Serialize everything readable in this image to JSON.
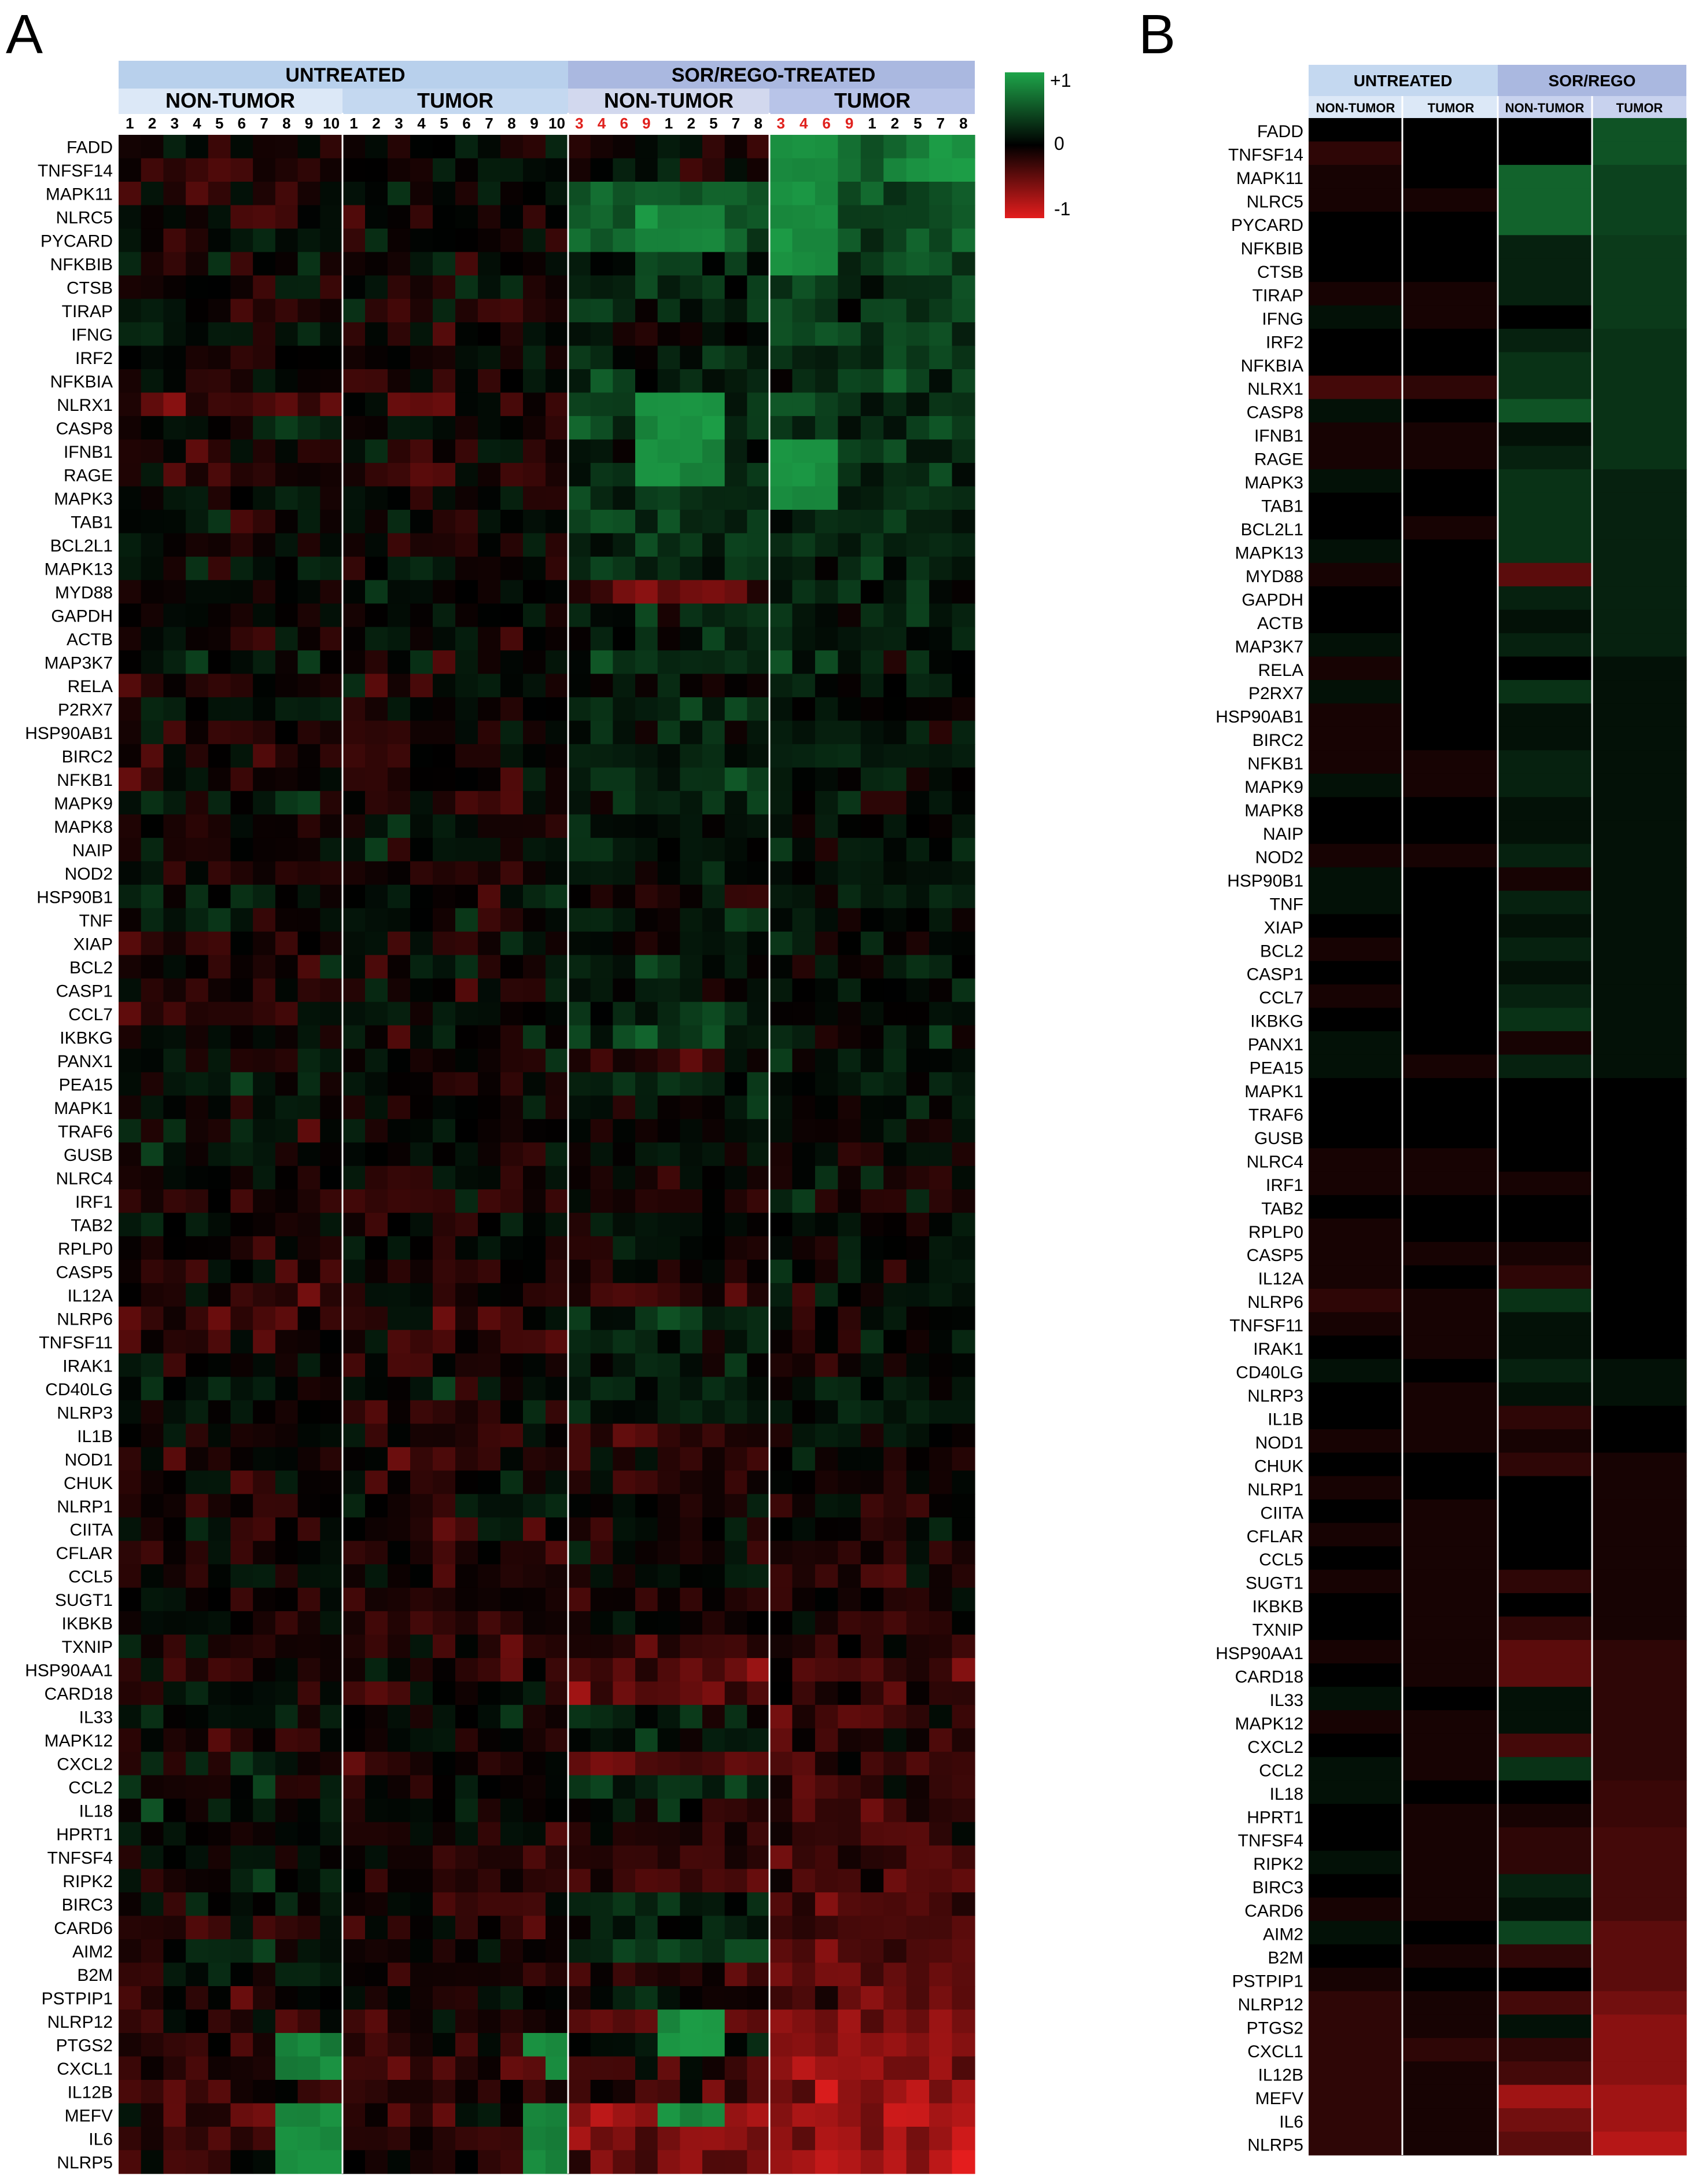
{
  "panel_labels": {
    "a": "A",
    "b": "B"
  },
  "colors": {
    "high": "#1ea54a",
    "mid": "#000000",
    "low": "#e41d1d",
    "header_dark": "#b8d0ec",
    "header_light": "#dce8f7",
    "header_sor": "#aab8e0"
  },
  "colorbar": {
    "max_label": "+1",
    "mid_label": "0",
    "min_label": "-1"
  },
  "chart_data": [
    {
      "type": "heatmap",
      "panel": "A",
      "value_range": [
        -1,
        1
      ],
      "groups": [
        {
          "label": "UNTREATED",
          "subgroups": [
            {
              "label": "NON-TUMOR",
              "columns": [
                "1",
                "2",
                "3",
                "4",
                "5",
                "6",
                "7",
                "8",
                "9",
                "10"
              ]
            },
            {
              "label": "TUMOR",
              "columns": [
                "1",
                "2",
                "3",
                "4",
                "5",
                "6",
                "7",
                "8",
                "9",
                "10"
              ]
            }
          ]
        },
        {
          "label": "SOR/REGO-TREATED",
          "subgroups": [
            {
              "label": "NON-TUMOR",
              "columns": [
                "3",
                "4",
                "6",
                "9",
                "1",
                "2",
                "5",
                "7",
                "8"
              ],
              "red_columns": [
                "3",
                "4",
                "6",
                "9"
              ]
            },
            {
              "label": "TUMOR",
              "columns": [
                "3",
                "4",
                "6",
                "9",
                "1",
                "2",
                "5",
                "7",
                "8"
              ],
              "red_columns": [
                "3",
                "4",
                "6",
                "9"
              ]
            }
          ]
        }
      ],
      "genes": [
        "FADD",
        "TNFSF14",
        "MAPK11",
        "NLRC5",
        "PYCARD",
        "NFKBIB",
        "CTSB",
        "TIRAP",
        "IFNG",
        "IRF2",
        "NFKBIA",
        "NLRX1",
        "CASP8",
        "IFNB1",
        "RAGE",
        "MAPK3",
        "TAB1",
        "BCL2L1",
        "MAPK13",
        "MYD88",
        "GAPDH",
        "ACTB",
        "MAP3K7",
        "RELA",
        "P2RX7",
        "HSP90AB1",
        "BIRC2",
        "NFKB1",
        "MAPK9",
        "MAPK8",
        "NAIP",
        "NOD2",
        "HSP90B1",
        "TNF",
        "XIAP",
        "BCL2",
        "CASP1",
        "CCL7",
        "IKBKG",
        "PANX1",
        "PEA15",
        "MAPK1",
        "TRAF6",
        "GUSB",
        "NLRC4",
        "IRF1",
        "TAB2",
        "RPLP0",
        "CASP5",
        "IL12A",
        "NLRP6",
        "TNFSF11",
        "IRAK1",
        "CD40LG",
        "NLRP3",
        "IL1B",
        "NOD1",
        "CHUK",
        "NLRP1",
        "CIITA",
        "CFLAR",
        "CCL5",
        "SUGT1",
        "IKBKB",
        "TXNIP",
        "HSP90AA1",
        "CARD18",
        "IL33",
        "MAPK12",
        "CXCL2",
        "CCL2",
        "IL18",
        "HPRT1",
        "TNFSF4",
        "RIPK2",
        "BIRC3",
        "CARD6",
        "AIM2",
        "B2M",
        "PSTPIP1",
        "NLRP12",
        "PTGS2",
        "CXCL1",
        "IL12B",
        "MEFV",
        "IL6",
        "NLRP5"
      ],
      "group_means": {
        "untreated_nontumor": [
          0,
          -0.2,
          -0.1,
          -0.1,
          0,
          0,
          0,
          -0.1,
          0.1,
          0,
          0,
          -0.3,
          0.1,
          -0.1,
          -0.1,
          0.1,
          0,
          0,
          0.1,
          -0.1,
          0,
          0,
          0.1,
          -0.1,
          0.1,
          -0.1,
          -0.1,
          -0.1,
          0.1,
          0,
          0,
          -0.1,
          0.1,
          0.1,
          0,
          -0.1,
          0,
          -0.1,
          0,
          0.1,
          0.1,
          0,
          0,
          0,
          -0.1,
          -0.1,
          0,
          -0.1,
          -0.1,
          -0.1,
          -0.2,
          -0.1,
          0,
          0.1,
          0,
          0,
          -0.1,
          0,
          -0.1,
          0,
          -0.1,
          0,
          -0.1,
          0,
          0,
          -0.1,
          0,
          0.1,
          -0.1,
          0,
          0.1,
          0.1,
          0,
          0,
          0.1,
          0,
          -0.1,
          0.1,
          0,
          -0.1,
          -0.2,
          -0.2,
          -0.2,
          -0.2,
          -0.2,
          -0.2,
          -0.2
        ],
        "untreated_tumor": [
          0,
          0,
          0,
          -0.1,
          0,
          0,
          0,
          -0.1,
          -0.1,
          0,
          0,
          -0.2,
          0,
          -0.1,
          -0.1,
          0,
          0,
          -0.1,
          0,
          0,
          0,
          0,
          0,
          0,
          0,
          0,
          0,
          -0.1,
          -0.1,
          0,
          0,
          -0.1,
          0,
          0,
          0,
          0,
          0,
          0,
          0,
          0,
          -0.1,
          0,
          0,
          0,
          -0.1,
          -0.1,
          0,
          0,
          -0.1,
          0,
          -0.1,
          -0.1,
          -0.1,
          0,
          -0.1,
          -0.1,
          -0.1,
          0,
          0,
          -0.1,
          -0.1,
          -0.1,
          -0.1,
          -0.1,
          -0.1,
          -0.1,
          -0.1,
          0,
          -0.1,
          -0.1,
          -0.1,
          0,
          -0.1,
          -0.1,
          -0.1,
          -0.1,
          -0.1,
          0,
          -0.1,
          0,
          -0.1,
          -0.1,
          -0.2,
          -0.1,
          -0.1,
          -0.1,
          -0.1
        ],
        "sor_nontumor": [
          0,
          0,
          0.6,
          0.6,
          0.6,
          0.2,
          0.2,
          0.2,
          0,
          0.2,
          0.3,
          0.3,
          0.5,
          0.1,
          0.2,
          0.3,
          0.3,
          0.3,
          0.3,
          -0.4,
          0.2,
          0.1,
          0.2,
          0,
          0.3,
          0.1,
          0.1,
          0.2,
          0.2,
          0.1,
          0.1,
          0.2,
          -0.1,
          0.2,
          0.1,
          0.2,
          0.1,
          0.2,
          0.3,
          -0.1,
          0.2,
          0,
          0,
          0,
          0,
          -0.1,
          0,
          0,
          -0.1,
          -0.2,
          0.3,
          0.1,
          0.1,
          0.2,
          0.1,
          -0.2,
          -0.1,
          -0.2,
          0,
          0,
          0,
          0,
          -0.2,
          0,
          -0.2,
          -0.4,
          -0.4,
          0.1,
          0.1,
          -0.3,
          0.3,
          0,
          -0.1,
          -0.2,
          -0.2,
          0.2,
          0.1,
          0.4,
          -0.2,
          0,
          -0.3,
          0.1,
          -0.2,
          -0.3,
          -0.7,
          -0.5,
          -0.4
        ],
        "sor_tumor": [
          0.5,
          0.5,
          0.4,
          0.4,
          0.4,
          0.35,
          0.35,
          0.35,
          0.35,
          0.3,
          0.3,
          0.3,
          0.3,
          0.3,
          0.3,
          0.2,
          0.2,
          0.2,
          0.2,
          0.2,
          0.2,
          0.2,
          0.2,
          0.1,
          0.1,
          0.1,
          0.1,
          0.1,
          0.1,
          0.1,
          0.1,
          0.1,
          0.1,
          0.1,
          0.1,
          0.1,
          0.1,
          0.1,
          0.1,
          0.1,
          0.1,
          0,
          0,
          0,
          0,
          0,
          0,
          0,
          0,
          0,
          0,
          0,
          0,
          0.1,
          0.1,
          0,
          0,
          -0.1,
          -0.1,
          -0.1,
          -0.1,
          -0.1,
          -0.1,
          -0.1,
          -0.1,
          -0.2,
          -0.2,
          -0.2,
          -0.2,
          -0.2,
          -0.2,
          -0.25,
          -0.25,
          -0.3,
          -0.3,
          -0.3,
          -0.3,
          -0.4,
          -0.4,
          -0.4,
          -0.5,
          -0.6,
          -0.6,
          -0.6,
          -0.7,
          -0.7,
          -0.8
        ]
      },
      "patterns": {
        "sor_nontumor_green_block_genes": [
          "NLRC5",
          "PYCARD",
          "NLRX1",
          "CASP8",
          "IFNB1",
          "RAGE"
        ],
        "sor_tumor_green_block_genes": [
          "FADD",
          "TNFSF14",
          "MAPK11",
          "NLRC5",
          "PYCARD",
          "NFKBIB",
          "IFNB1",
          "RAGE",
          "MAPK3"
        ],
        "untreated_green_tail_genes": [
          "PTGS2",
          "CXCL1",
          "MEFV",
          "IL6",
          "NLRP5"
        ],
        "sor_nontumor_green_tail_genes": [
          "NLRP12",
          "PTGS2",
          "MEFV"
        ]
      }
    },
    {
      "type": "heatmap",
      "panel": "B",
      "value_range": [
        -1,
        1
      ],
      "groups": [
        {
          "label": "UNTREATED",
          "subgroups": [
            "NON-TUMOR",
            "TUMOR"
          ]
        },
        {
          "label": "SOR/REGO",
          "subgroups": [
            "NON-TUMOR",
            "TUMOR"
          ]
        }
      ],
      "genes": [
        "FADD",
        "TNFSF14",
        "MAPK11",
        "NLRC5",
        "PYCARD",
        "NFKBIB",
        "CTSB",
        "TIRAP",
        "IFNG",
        "IRF2",
        "NFKBIA",
        "NLRX1",
        "CASP8",
        "IFNB1",
        "RAGE",
        "MAPK3",
        "TAB1",
        "BCL2L1",
        "MAPK13",
        "MYD88",
        "GAPDH",
        "ACTB",
        "MAP3K7",
        "RELA",
        "P2RX7",
        "HSP90AB1",
        "BIRC2",
        "NFKB1",
        "MAPK9",
        "MAPK8",
        "NAIP",
        "NOD2",
        "HSP90B1",
        "TNF",
        "XIAP",
        "BCL2",
        "CASP1",
        "CCL7",
        "IKBKG",
        "PANX1",
        "PEA15",
        "MAPK1",
        "TRAF6",
        "GUSB",
        "NLRC4",
        "IRF1",
        "TAB2",
        "RPLP0",
        "CASP5",
        "IL12A",
        "NLRP6",
        "TNFSF11",
        "IRAK1",
        "CD40LG",
        "NLRP3",
        "IL1B",
        "NOD1",
        "CHUK",
        "NLRP1",
        "CIITA",
        "CFLAR",
        "CCL5",
        "SUGT1",
        "IKBKB",
        "TXNIP",
        "HSP90AA1",
        "CARD18",
        "IL33",
        "MAPK12",
        "CXCL2",
        "CCL2",
        "IL18",
        "HPRT1",
        "TNFSF4",
        "RIPK2",
        "BIRC3",
        "CARD6",
        "AIM2",
        "B2M",
        "PSTPIP1",
        "NLRP12",
        "PTGS2",
        "CXCL1",
        "IL12B",
        "MEFV",
        "IL6",
        "NLRP5"
      ]
    }
  ]
}
